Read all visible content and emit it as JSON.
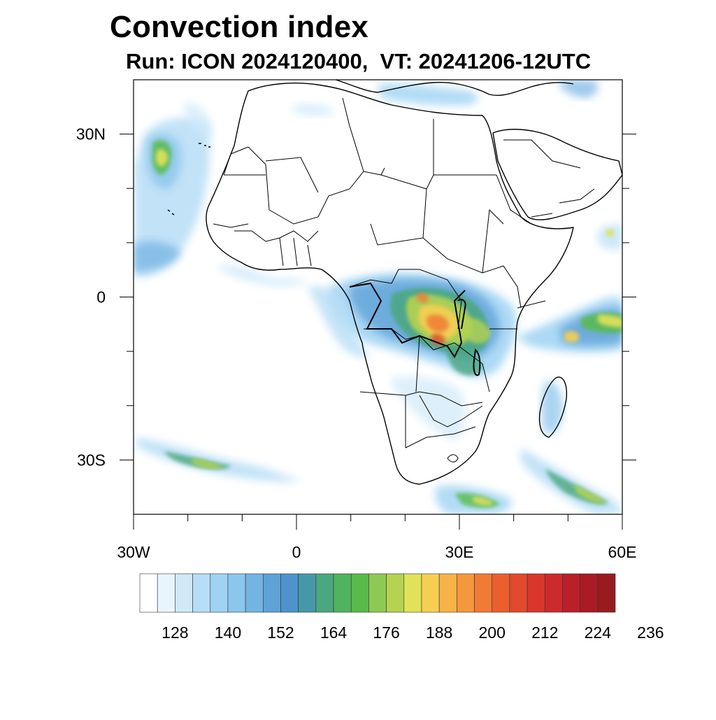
{
  "header": {
    "title": "Convection index",
    "subtitle": "Run: ICON 2024120400,  VT: 20241206-12UTC"
  },
  "map": {
    "lon_range": [
      -30,
      60
    ],
    "lat_range": [
      -40,
      40
    ],
    "lon_ticks": [
      {
        "value": -30,
        "label": "30W"
      },
      {
        "value": 0,
        "label": "0"
      },
      {
        "value": 30,
        "label": "30E"
      },
      {
        "value": 60,
        "label": "60E"
      }
    ],
    "lat_ticks": [
      {
        "value": 30,
        "label": "30N"
      },
      {
        "value": 0,
        "label": "0"
      },
      {
        "value": -30,
        "label": "30S"
      }
    ],
    "minor_lon_ticks": [
      -20,
      -10,
      10,
      20,
      40,
      50
    ],
    "minor_lat_ticks": [
      20,
      10,
      -10,
      -20
    ]
  },
  "colorbar": {
    "colors": [
      "#ffffff",
      "#e8f5fd",
      "#cfe9f9",
      "#b7def6",
      "#9fd3f3",
      "#8cc6ec",
      "#74b4e3",
      "#5fa2d8",
      "#4f93cc",
      "#4698a8",
      "#4aa77e",
      "#4fb35f",
      "#58bb4b",
      "#8ec954",
      "#b5d351",
      "#e2e25a",
      "#f6cf52",
      "#f7b347",
      "#f4983d",
      "#f07b34",
      "#ea5f2d",
      "#e14a2c",
      "#d9372c",
      "#cc2a2c",
      "#bb1f2a",
      "#a91b25",
      "#981b20"
    ],
    "labels": [
      "128",
      "140",
      "152",
      "164",
      "176",
      "188",
      "200",
      "212",
      "224",
      "236"
    ]
  }
}
